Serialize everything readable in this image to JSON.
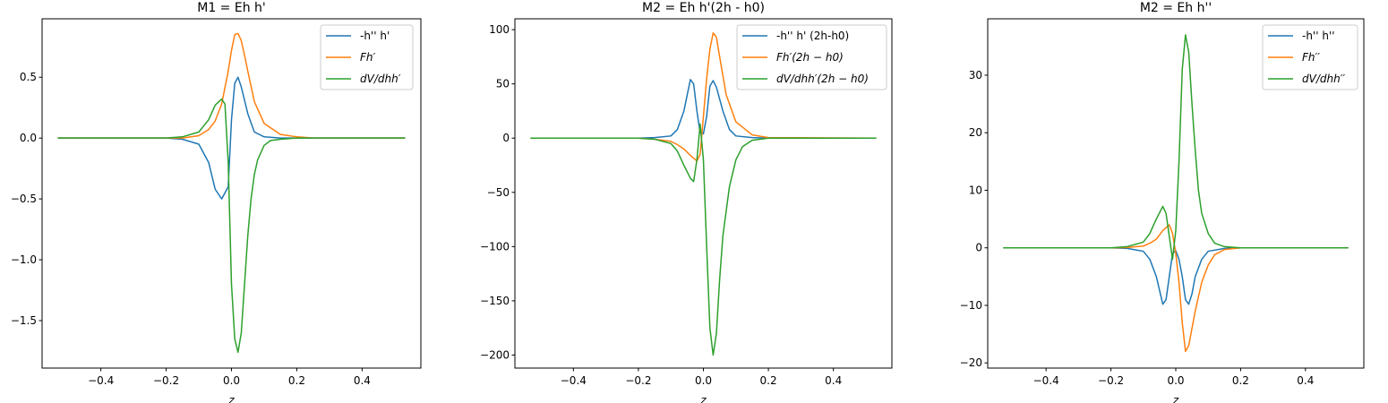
{
  "chart_data": [
    {
      "type": "line",
      "title": "M1 = Eh h'",
      "xlabel": "z",
      "ylabel": "",
      "xlim": [
        -0.58,
        0.58
      ],
      "ylim": [
        -1.89,
        0.98
      ],
      "xticks": [
        -0.4,
        -0.2,
        0.0,
        0.2,
        0.4
      ],
      "xtick_labels": [
        "−0.4",
        "−0.2",
        "0.0",
        "0.2",
        "0.4"
      ],
      "yticks": [
        0.5,
        0.0,
        -0.5,
        -1.0,
        -1.5
      ],
      "ytick_labels": [
        "0.5",
        "0.0",
        "−0.5",
        "−1.0",
        "−1.5"
      ],
      "legend_position": "top-right",
      "series": [
        {
          "name": "-h'' h'",
          "color": "#1f77b4",
          "x": [
            -0.53,
            -0.2,
            -0.15,
            -0.1,
            -0.07,
            -0.05,
            -0.03,
            -0.01,
            0.0,
            0.01,
            0.02,
            0.03,
            0.05,
            0.07,
            0.1,
            0.15,
            0.2,
            0.53
          ],
          "y": [
            0,
            0,
            -0.01,
            -0.05,
            -0.2,
            -0.42,
            -0.5,
            -0.4,
            0.15,
            0.45,
            0.5,
            0.42,
            0.2,
            0.05,
            0.01,
            0.0,
            0.0,
            0
          ]
        },
        {
          "name": "Fh′",
          "color": "#ff7f0e",
          "x": [
            -0.53,
            -0.2,
            -0.15,
            -0.1,
            -0.07,
            -0.05,
            -0.03,
            -0.01,
            0.0,
            0.01,
            0.02,
            0.03,
            0.04,
            0.05,
            0.07,
            0.1,
            0.15,
            0.2,
            0.25,
            0.53
          ],
          "y": [
            0,
            0,
            0.0,
            0.02,
            0.07,
            0.14,
            0.28,
            0.55,
            0.72,
            0.85,
            0.86,
            0.8,
            0.68,
            0.55,
            0.3,
            0.12,
            0.03,
            0.01,
            0.0,
            0
          ]
        },
        {
          "name": "dV/dhh′",
          "color": "#2ca02c",
          "x": [
            -0.53,
            -0.2,
            -0.15,
            -0.1,
            -0.07,
            -0.05,
            -0.03,
            -0.02,
            -0.01,
            0.0,
            0.01,
            0.02,
            0.03,
            0.04,
            0.05,
            0.06,
            0.07,
            0.08,
            0.1,
            0.12,
            0.15,
            0.2,
            0.25,
            0.53
          ],
          "y": [
            0,
            0,
            0.01,
            0.05,
            0.15,
            0.27,
            0.32,
            0.28,
            -0.2,
            -1.2,
            -1.65,
            -1.76,
            -1.6,
            -1.2,
            -0.8,
            -0.5,
            -0.3,
            -0.18,
            -0.06,
            -0.02,
            -0.01,
            0.0,
            0.0,
            0
          ]
        }
      ]
    },
    {
      "type": "line",
      "title": "M2 = Eh h'(2h - h0)",
      "xlabel": "z",
      "ylabel": "",
      "xlim": [
        -0.58,
        0.58
      ],
      "ylim": [
        -212,
        110
      ],
      "xticks": [
        -0.4,
        -0.2,
        0.0,
        0.2,
        0.4
      ],
      "xtick_labels": [
        "−0.4",
        "−0.2",
        "0.0",
        "0.2",
        "0.4"
      ],
      "yticks": [
        100,
        50,
        0,
        -50,
        -100,
        -150,
        -200
      ],
      "ytick_labels": [
        "100",
        "50",
        "0",
        "−50",
        "−100",
        "−150",
        "−200"
      ],
      "legend_position": "top-right",
      "series": [
        {
          "name": "-h'' h' (2h-h0)",
          "color": "#1f77b4",
          "x": [
            -0.53,
            -0.2,
            -0.15,
            -0.1,
            -0.08,
            -0.06,
            -0.04,
            -0.03,
            -0.02,
            -0.01,
            0.0,
            0.01,
            0.02,
            0.03,
            0.04,
            0.06,
            0.08,
            0.1,
            0.15,
            0.2,
            0.53
          ],
          "y": [
            0,
            0,
            0.5,
            2,
            8,
            25,
            54,
            50,
            25,
            5,
            4,
            20,
            48,
            53,
            47,
            25,
            8,
            2,
            0.5,
            0,
            0
          ]
        },
        {
          "name": "Fh′(2h − h0)",
          "color": "#ff7f0e",
          "x": [
            -0.53,
            -0.2,
            -0.15,
            -0.1,
            -0.08,
            -0.06,
            -0.04,
            -0.02,
            -0.01,
            0.0,
            0.01,
            0.02,
            0.03,
            0.04,
            0.05,
            0.07,
            0.1,
            0.15,
            0.2,
            0.53
          ],
          "y": [
            0,
            0,
            -1,
            -3,
            -6,
            -10,
            -16,
            -21,
            -15,
            20,
            55,
            82,
            97,
            93,
            75,
            40,
            15,
            3,
            0.5,
            0
          ]
        },
        {
          "name": "dV/dhh′(2h − h0)",
          "color": "#2ca02c",
          "x": [
            -0.53,
            -0.2,
            -0.15,
            -0.1,
            -0.08,
            -0.06,
            -0.04,
            -0.03,
            -0.02,
            -0.01,
            0.0,
            0.01,
            0.02,
            0.03,
            0.04,
            0.05,
            0.06,
            0.08,
            0.1,
            0.12,
            0.15,
            0.2,
            0.53
          ],
          "y": [
            0,
            0,
            -1,
            -5,
            -12,
            -25,
            -37,
            -40,
            -20,
            13,
            -20,
            -100,
            -175,
            -200,
            -180,
            -130,
            -90,
            -45,
            -20,
            -8,
            -2,
            0,
            0
          ]
        }
      ]
    },
    {
      "type": "line",
      "title": "M2 = Eh h''",
      "xlabel": "z",
      "ylabel": "",
      "xlim": [
        -0.58,
        0.58
      ],
      "ylim": [
        -20.9,
        39.8
      ],
      "xticks": [
        -0.4,
        -0.2,
        0.0,
        0.2,
        0.4
      ],
      "xtick_labels": [
        "−0.4",
        "−0.2",
        "0.0",
        "0.2",
        "0.4"
      ],
      "yticks": [
        30,
        20,
        10,
        0,
        -10,
        -20
      ],
      "ytick_labels": [
        "30",
        "20",
        "10",
        "0",
        "−10",
        "−20"
      ],
      "legend_position": "top-right",
      "series": [
        {
          "name": "-h'' h''",
          "color": "#1f77b4",
          "x": [
            -0.53,
            -0.2,
            -0.15,
            -0.1,
            -0.08,
            -0.06,
            -0.04,
            -0.03,
            -0.02,
            -0.01,
            0.0,
            0.01,
            0.02,
            0.03,
            0.04,
            0.05,
            0.06,
            0.08,
            0.1,
            0.15,
            0.2,
            0.53
          ],
          "y": [
            0,
            0,
            -0.1,
            -0.6,
            -2,
            -5,
            -9.8,
            -9,
            -5,
            -1,
            -0.5,
            -2,
            -5,
            -9,
            -9.8,
            -8,
            -5,
            -2,
            -0.6,
            -0.1,
            0,
            0
          ]
        },
        {
          "name": "Fh′′",
          "color": "#ff7f0e",
          "x": [
            -0.53,
            -0.2,
            -0.15,
            -0.1,
            -0.08,
            -0.06,
            -0.04,
            -0.02,
            -0.01,
            0.0,
            0.01,
            0.02,
            0.03,
            0.04,
            0.05,
            0.06,
            0.08,
            0.1,
            0.12,
            0.15,
            0.2,
            0.53
          ],
          "y": [
            0,
            0,
            0.05,
            0.3,
            0.8,
            1.5,
            3,
            4,
            2.5,
            -1,
            -6,
            -13,
            -18,
            -17,
            -14,
            -11,
            -6,
            -3,
            -1.2,
            -0.3,
            0,
            0
          ]
        },
        {
          "name": "dV/dhh′′",
          "color": "#2ca02c",
          "x": [
            -0.53,
            -0.2,
            -0.15,
            -0.1,
            -0.08,
            -0.06,
            -0.04,
            -0.03,
            -0.02,
            -0.01,
            0.0,
            0.01,
            0.02,
            0.03,
            0.04,
            0.05,
            0.06,
            0.07,
            0.08,
            0.1,
            0.12,
            0.15,
            0.2,
            0.53
          ],
          "y": [
            0,
            0,
            0.2,
            1,
            2.5,
            5,
            7.2,
            6,
            2,
            -2,
            3,
            15,
            31,
            37,
            34,
            25,
            17,
            10,
            6,
            2.5,
            0.8,
            0.2,
            0,
            0
          ]
        }
      ]
    }
  ]
}
